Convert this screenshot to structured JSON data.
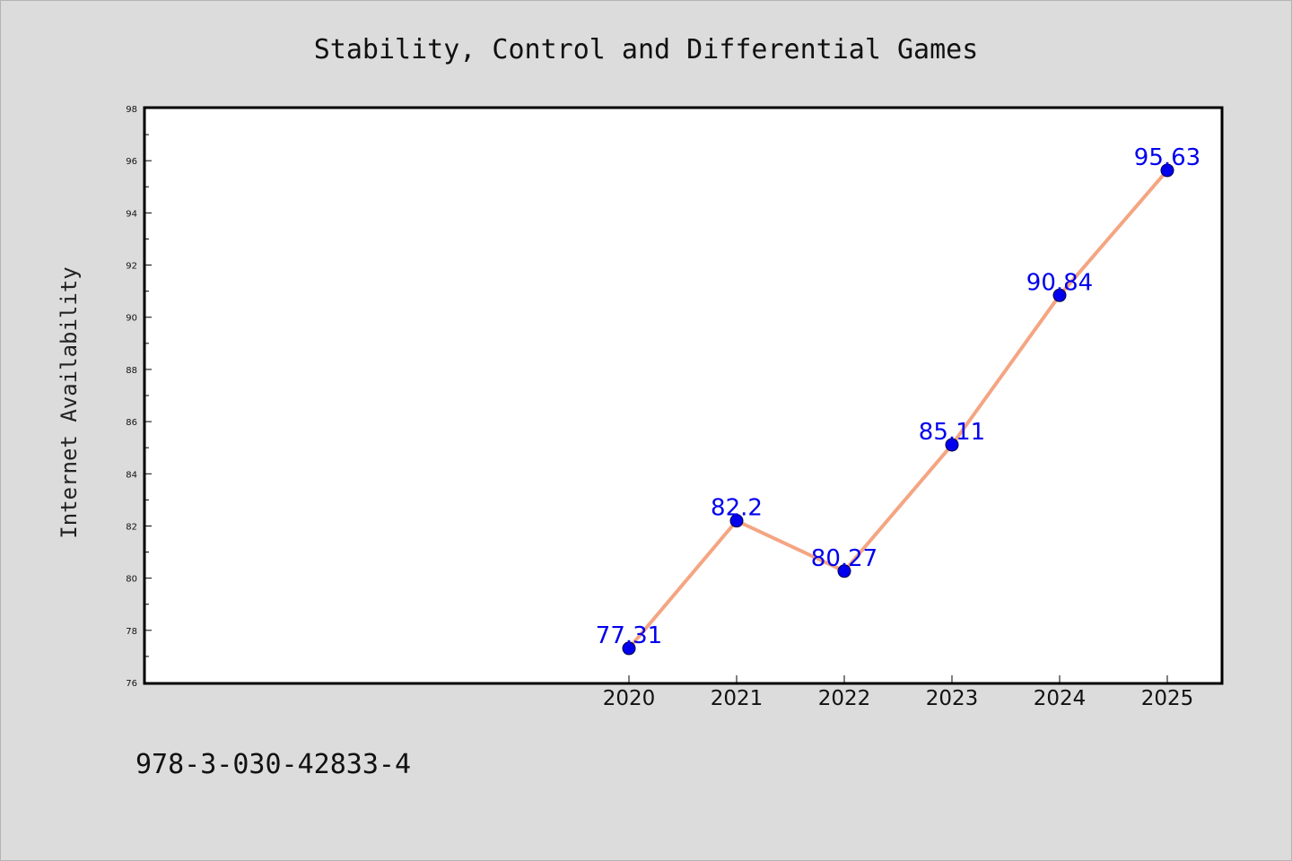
{
  "chart_data": {
    "type": "line",
    "title": "Stability, Control and Differential Games",
    "xlabel": "",
    "ylabel": "Internet Availability",
    "categories": [
      "2020",
      "2021",
      "2022",
      "2023",
      "2024",
      "2025"
    ],
    "series": [
      {
        "values": [
          77.31,
          82.2,
          80.27,
          85.11,
          90.84,
          95.63
        ],
        "labels": [
          "77.31",
          "82.2",
          "80.27",
          "85.11",
          "90.84",
          "95.63"
        ],
        "line_color": "#f4a582",
        "marker_color": "#0000ee"
      }
    ],
    "ylim": [
      76,
      98
    ],
    "y_ticks": [
      "76",
      "78",
      "80",
      "82",
      "84",
      "86",
      "88",
      "90",
      "92",
      "94",
      "96",
      "98"
    ],
    "grid": false,
    "legend": "none"
  },
  "footer": {
    "isbn": "978-3-030-42833-4"
  },
  "colors": {
    "background": "#dcdcdc",
    "plot_area": "#ffffff",
    "axis": "#000000"
  }
}
